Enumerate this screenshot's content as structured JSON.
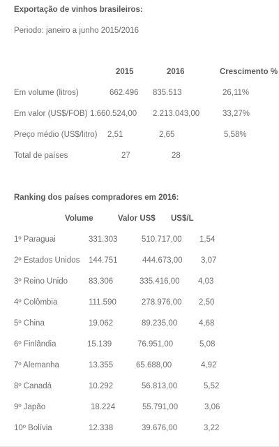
{
  "title": "Exportação de vinhos brasileiros:",
  "period": "Periodo: janeiro a junho 2015/2016",
  "summary": {
    "headers": [
      "2015",
      "2016",
      "Crescimento %"
    ],
    "rows": [
      {
        "label": "Em volume (litros)",
        "v2015": "662.496",
        "v2016": "835.513",
        "growth": "26,11%"
      },
      {
        "label": "Em valor (US$/FOB)",
        "v2015": "1.660.524,00",
        "v2016": "2.213.043,00",
        "growth": "33,27%"
      },
      {
        "label": "Preço médio (US$/litro)",
        "v2015": "2,51",
        "v2016": "2,65",
        "growth": "5,58%"
      },
      {
        "label": "Total de países",
        "v2015": "27",
        "v2016": "28",
        "growth": ""
      }
    ]
  },
  "ranking": {
    "title": "Ranking dos países compradores em 2016:",
    "headers": [
      "Volume",
      "Valor US$",
      "US$/L"
    ],
    "rows": [
      {
        "country": "1º Paraguai",
        "volume": "331.303",
        "value": "510.717,00",
        "per_liter": "1,54"
      },
      {
        "country": "2º Estados Unidos",
        "volume": "144.751",
        "value": "444.673,00",
        "per_liter": "3,07"
      },
      {
        "country": "3º Reino Unido",
        "volume": "83.306",
        "value": "335.416,00",
        "per_liter": "4,03"
      },
      {
        "country": "4º Colômbia",
        "volume": "111.590",
        "value": "278.976,00",
        "per_liter": "2,50"
      },
      {
        "country": "5º China",
        "volume": "19.062",
        "value": "89.235,00",
        "per_liter": "4,68"
      },
      {
        "country": "6º Finlândia",
        "volume": "15.139",
        "value": "76.951,00",
        "per_liter": "5,08"
      },
      {
        "country": "7º Alemanha",
        "volume": "13.355",
        "value": "65.688,00",
        "per_liter": "4,92"
      },
      {
        "country": "8º Canadá",
        "volume": "10.292",
        "value": "56.813,00",
        "per_liter": "5,52"
      },
      {
        "country": "9º Japão",
        "volume": "18.224",
        "value": "55.791,00",
        "per_liter": "3,06"
      },
      {
        "country": "10º Bolívia",
        "volume": "12.338",
        "value": "39.676,00",
        "per_liter": "3,22"
      }
    ]
  }
}
